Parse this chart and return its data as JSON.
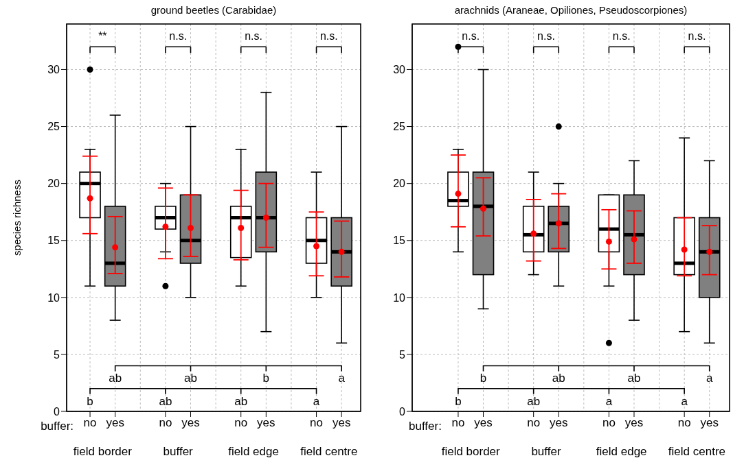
{
  "chart_data": [
    {
      "type": "box",
      "title": "ground beetles (Carabidae)",
      "ylabel": "species richness",
      "xlabel": "buffer:",
      "categories": [
        "no",
        "yes",
        null,
        "no",
        "yes",
        null,
        "no",
        "yes",
        null,
        "no",
        "yes"
      ],
      "colors": [
        "#ffffff",
        "#808080",
        null,
        "#ffffff",
        "#808080",
        null,
        "#ffffff",
        "#808080",
        null,
        "#ffffff",
        "#808080"
      ],
      "boxes": [
        {
          "low": 11,
          "q1": 17,
          "median": 20,
          "q3": 21,
          "high": 23,
          "outliers": [
            30
          ]
        },
        {
          "low": 8,
          "q1": 11,
          "median": 13,
          "q3": 18,
          "high": 26
        },
        null,
        {
          "low": 14,
          "q1": 16,
          "median": 17,
          "q3": 18,
          "high": 20,
          "outliers": [
            11
          ]
        },
        {
          "low": 10,
          "q1": 13,
          "median": 15,
          "q3": 19,
          "high": 25
        },
        null,
        {
          "low": 11,
          "q1": 13.5,
          "median": 17,
          "q3": 18,
          "high": 23
        },
        {
          "low": 7,
          "q1": 14,
          "median": 17,
          "q3": 21,
          "high": 28
        },
        null,
        {
          "low": 10,
          "q1": 13,
          "median": 15,
          "q3": 17,
          "high": 21
        },
        {
          "low": 6,
          "q1": 11,
          "median": 14,
          "q3": 17,
          "high": 25
        }
      ],
      "series": [
        {
          "type": "scatter",
          "color": "#ff0000",
          "values": [
            18.7,
            14.4,
            null,
            16.2,
            16.1,
            null,
            16.1,
            17.0,
            null,
            14.5,
            14.0
          ],
          "errors": [
            [
              15.6,
              22.4
            ],
            [
              12.1,
              17.1
            ],
            null,
            [
              13.4,
              19.6
            ],
            [
              13.6,
              19.0
            ],
            null,
            [
              13.3,
              19.4
            ],
            [
              14.4,
              20.0
            ],
            null,
            [
              11.9,
              17.5
            ],
            [
              11.8,
              16.7
            ]
          ]
        }
      ],
      "ylim": [
        0,
        34
      ],
      "yticks": [
        0,
        5,
        10,
        15,
        20,
        25,
        30
      ],
      "grid": true,
      "annotations": [
        "**",
        "n.s.",
        "n.s.",
        "n.s.",
        "b",
        "ab",
        "ab",
        "ab",
        "ab",
        "b",
        "a",
        "a",
        "field border",
        "buffer",
        "field edge",
        "field centre"
      ]
    },
    {
      "type": "box",
      "title": "arachnids (Araneae, Opiliones, Pseudoscorpiones)",
      "xlabel": "buffer:",
      "categories": [
        "no",
        "yes",
        null,
        "no",
        "yes",
        null,
        "no",
        "yes",
        null,
        "no",
        "yes"
      ],
      "colors": [
        "#ffffff",
        "#808080",
        null,
        "#ffffff",
        "#808080",
        null,
        "#ffffff",
        "#808080",
        null,
        "#ffffff",
        "#808080"
      ],
      "boxes": [
        {
          "low": 14,
          "q1": 18,
          "median": 18.5,
          "q3": 21,
          "high": 23,
          "outliers": [
            32
          ]
        },
        {
          "low": 9,
          "q1": 12,
          "median": 18,
          "q3": 21,
          "high": 30
        },
        null,
        {
          "low": 12,
          "q1": 14,
          "median": 15.5,
          "q3": 18,
          "high": 21
        },
        {
          "low": 11,
          "q1": 14,
          "median": 16.5,
          "q3": 18,
          "high": 20,
          "outliers": [
            25
          ]
        },
        null,
        {
          "low": 11,
          "q1": 14,
          "median": 16,
          "q3": 19,
          "high": 19,
          "outliers": [
            6
          ]
        },
        {
          "low": 8,
          "q1": 12,
          "median": 15.5,
          "q3": 19,
          "high": 22
        },
        null,
        {
          "low": 7,
          "q1": 12,
          "median": 13,
          "q3": 17,
          "high": 24
        },
        {
          "low": 6,
          "q1": 10,
          "median": 14,
          "q3": 17,
          "high": 22
        }
      ],
      "series": [
        {
          "type": "scatter",
          "color": "#ff0000",
          "values": [
            19.1,
            17.8,
            null,
            15.6,
            16.5,
            null,
            14.9,
            15.1,
            null,
            14.2,
            14.0
          ],
          "errors": [
            [
              16.2,
              22.5
            ],
            [
              15.4,
              20.5
            ],
            null,
            [
              13.2,
              18.6
            ],
            [
              14.3,
              19.1
            ],
            null,
            [
              12.5,
              17.7
            ],
            [
              13.0,
              17.6
            ],
            null,
            [
              11.9,
              17.0
            ],
            [
              12.0,
              16.3
            ]
          ]
        }
      ],
      "ylim": [
        0,
        34
      ],
      "yticks": [
        0,
        5,
        10,
        15,
        20,
        25,
        30
      ],
      "grid": true,
      "annotations": [
        "n.s.",
        "n.s.",
        "n.s.",
        "n.s.",
        "b",
        "b",
        "ab",
        "ab",
        "a",
        "ab",
        "a",
        "a",
        "field border",
        "buffer",
        "field edge",
        "field centre"
      ]
    }
  ]
}
